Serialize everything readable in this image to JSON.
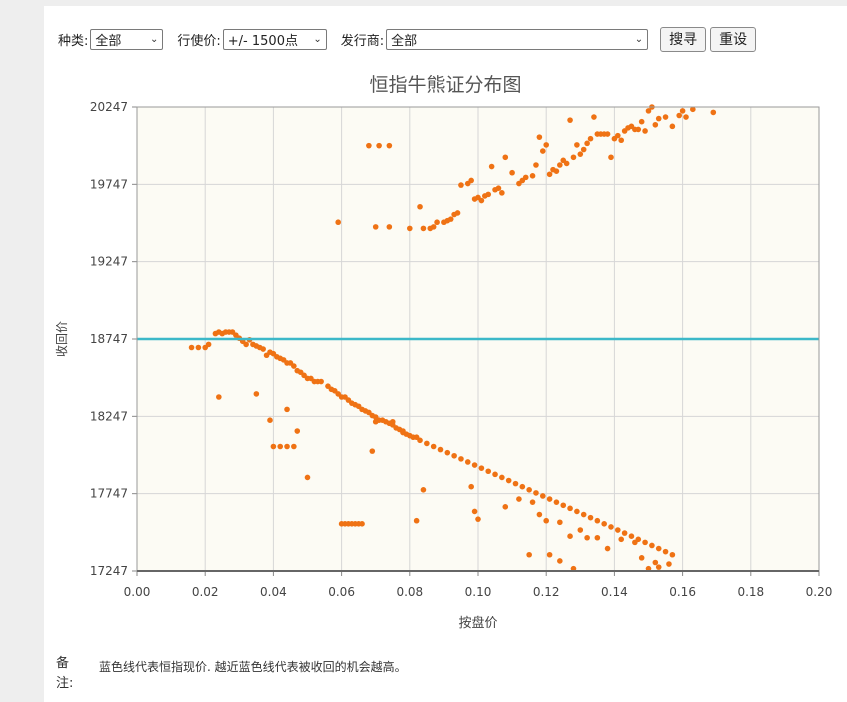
{
  "filters": {
    "type_label": "种类:",
    "type_value": "全部",
    "strike_label": "行使价:",
    "strike_value": "+/- 1500点",
    "issuer_label": "发行商:",
    "issuer_value": "全部",
    "search_button": "搜寻",
    "reset_button": "重设"
  },
  "note": {
    "label": "备注:",
    "text": "蓝色线代表恒指现价. 越近蓝色线代表被收回的机会越高。"
  },
  "colors": {
    "point": "#ef7214",
    "current_line": "#3cb8c8",
    "plot_bg": "#fcfbf4",
    "grid": "#d6d6d6"
  },
  "chart_data": {
    "type": "scatter",
    "title": "恒指牛熊证分布图",
    "xlabel": "按盘价",
    "ylabel": "收回价",
    "xlim": [
      0,
      0.2
    ],
    "ylim": [
      17247,
      20247
    ],
    "x_ticks": [
      "0.00",
      "0.02",
      "0.04",
      "0.06",
      "0.08",
      "0.10",
      "0.12",
      "0.14",
      "0.16",
      "0.18",
      "0.20"
    ],
    "y_ticks": [
      "17247",
      "17747",
      "18247",
      "18747",
      "19247",
      "19747",
      "20247"
    ],
    "grid": true,
    "current_index_level": 18747,
    "series": [
      {
        "values": [
          [
            0.059,
            19502
          ],
          [
            0.068,
            19997
          ],
          [
            0.071,
            19997
          ],
          [
            0.074,
            19997
          ],
          [
            0.07,
            19472
          ],
          [
            0.074,
            19472
          ],
          [
            0.08,
            19462
          ],
          [
            0.083,
            19602
          ],
          [
            0.084,
            19462
          ],
          [
            0.086,
            19462
          ],
          [
            0.087,
            19472
          ],
          [
            0.088,
            19502
          ],
          [
            0.09,
            19502
          ],
          [
            0.091,
            19512
          ],
          [
            0.092,
            19522
          ],
          [
            0.093,
            19552
          ],
          [
            0.094,
            19562
          ],
          [
            0.095,
            19742
          ],
          [
            0.097,
            19752
          ],
          [
            0.098,
            19772
          ],
          [
            0.099,
            19652
          ],
          [
            0.1,
            19662
          ],
          [
            0.101,
            19642
          ],
          [
            0.102,
            19672
          ],
          [
            0.103,
            19682
          ],
          [
            0.104,
            19862
          ],
          [
            0.105,
            19712
          ],
          [
            0.106,
            19722
          ],
          [
            0.107,
            19692
          ],
          [
            0.108,
            19922
          ],
          [
            0.11,
            19822
          ],
          [
            0.112,
            19752
          ],
          [
            0.113,
            19772
          ],
          [
            0.114,
            19792
          ],
          [
            0.116,
            19802
          ],
          [
            0.117,
            19872
          ],
          [
            0.118,
            20052
          ],
          [
            0.119,
            19962
          ],
          [
            0.12,
            20002
          ],
          [
            0.121,
            19812
          ],
          [
            0.122,
            19842
          ],
          [
            0.123,
            19832
          ],
          [
            0.124,
            19872
          ],
          [
            0.125,
            19902
          ],
          [
            0.126,
            19882
          ],
          [
            0.127,
            20162
          ],
          [
            0.128,
            19922
          ],
          [
            0.129,
            20002
          ],
          [
            0.13,
            19942
          ],
          [
            0.131,
            19972
          ],
          [
            0.132,
            20012
          ],
          [
            0.133,
            20042
          ],
          [
            0.134,
            20182
          ],
          [
            0.135,
            20072
          ],
          [
            0.136,
            20072
          ],
          [
            0.137,
            20072
          ],
          [
            0.138,
            20072
          ],
          [
            0.139,
            19922
          ],
          [
            0.14,
            20042
          ],
          [
            0.141,
            20062
          ],
          [
            0.142,
            20032
          ],
          [
            0.143,
            20092
          ],
          [
            0.144,
            20112
          ],
          [
            0.145,
            20122
          ],
          [
            0.146,
            20102
          ],
          [
            0.147,
            20102
          ],
          [
            0.148,
            20152
          ],
          [
            0.149,
            20092
          ],
          [
            0.15,
            20222
          ],
          [
            0.151,
            20247
          ],
          [
            0.152,
            20132
          ],
          [
            0.153,
            20172
          ],
          [
            0.155,
            20182
          ],
          [
            0.157,
            20122
          ],
          [
            0.159,
            20192
          ],
          [
            0.16,
            20222
          ],
          [
            0.161,
            20182
          ],
          [
            0.163,
            20232
          ],
          [
            0.169,
            20212
          ],
          [
            0.016,
            18692
          ],
          [
            0.018,
            18692
          ],
          [
            0.02,
            18692
          ],
          [
            0.021,
            18712
          ],
          [
            0.023,
            18782
          ],
          [
            0.024,
            18792
          ],
          [
            0.025,
            18782
          ],
          [
            0.026,
            18792
          ],
          [
            0.027,
            18792
          ],
          [
            0.028,
            18792
          ],
          [
            0.029,
            18772
          ],
          [
            0.03,
            18752
          ],
          [
            0.031,
            18732
          ],
          [
            0.032,
            18712
          ],
          [
            0.033,
            18742
          ],
          [
            0.034,
            18712
          ],
          [
            0.035,
            18702
          ],
          [
            0.036,
            18692
          ],
          [
            0.037,
            18682
          ],
          [
            0.038,
            18642
          ],
          [
            0.039,
            18662
          ],
          [
            0.04,
            18652
          ],
          [
            0.041,
            18632
          ],
          [
            0.042,
            18622
          ],
          [
            0.043,
            18612
          ],
          [
            0.044,
            18592
          ],
          [
            0.045,
            18592
          ],
          [
            0.046,
            18572
          ],
          [
            0.047,
            18542
          ],
          [
            0.048,
            18532
          ],
          [
            0.049,
            18512
          ],
          [
            0.05,
            18492
          ],
          [
            0.051,
            18492
          ],
          [
            0.052,
            18472
          ],
          [
            0.053,
            18472
          ],
          [
            0.054,
            18472
          ],
          [
            0.056,
            18442
          ],
          [
            0.057,
            18422
          ],
          [
            0.058,
            18412
          ],
          [
            0.059,
            18392
          ],
          [
            0.06,
            18372
          ],
          [
            0.061,
            18372
          ],
          [
            0.062,
            18352
          ],
          [
            0.063,
            18332
          ],
          [
            0.064,
            18322
          ],
          [
            0.065,
            18312
          ],
          [
            0.066,
            18292
          ],
          [
            0.067,
            18282
          ],
          [
            0.068,
            18272
          ],
          [
            0.069,
            18252
          ],
          [
            0.07,
            18242
          ],
          [
            0.071,
            18222
          ],
          [
            0.072,
            18222
          ],
          [
            0.073,
            18212
          ],
          [
            0.074,
            18202
          ],
          [
            0.075,
            18192
          ],
          [
            0.076,
            18172
          ],
          [
            0.077,
            18162
          ],
          [
            0.078,
            18152
          ],
          [
            0.079,
            18132
          ],
          [
            0.08,
            18122
          ],
          [
            0.081,
            18112
          ],
          [
            0.082,
            18112
          ],
          [
            0.083,
            18092
          ],
          [
            0.085,
            18072
          ],
          [
            0.087,
            18052
          ],
          [
            0.089,
            18032
          ],
          [
            0.091,
            18012
          ],
          [
            0.093,
            17992
          ],
          [
            0.095,
            17972
          ],
          [
            0.097,
            17952
          ],
          [
            0.099,
            17932
          ],
          [
            0.101,
            17912
          ],
          [
            0.103,
            17892
          ],
          [
            0.105,
            17872
          ],
          [
            0.107,
            17852
          ],
          [
            0.109,
            17832
          ],
          [
            0.111,
            17812
          ],
          [
            0.113,
            17792
          ],
          [
            0.115,
            17772
          ],
          [
            0.117,
            17752
          ],
          [
            0.119,
            17732
          ],
          [
            0.121,
            17712
          ],
          [
            0.123,
            17692
          ],
          [
            0.125,
            17672
          ],
          [
            0.127,
            17652
          ],
          [
            0.129,
            17632
          ],
          [
            0.131,
            17612
          ],
          [
            0.133,
            17592
          ],
          [
            0.135,
            17572
          ],
          [
            0.137,
            17552
          ],
          [
            0.139,
            17532
          ],
          [
            0.141,
            17512
          ],
          [
            0.143,
            17492
          ],
          [
            0.145,
            17472
          ],
          [
            0.147,
            17452
          ],
          [
            0.149,
            17432
          ],
          [
            0.151,
            17412
          ],
          [
            0.153,
            17392
          ],
          [
            0.155,
            17372
          ],
          [
            0.157,
            17352
          ],
          [
            0.024,
            18372
          ],
          [
            0.035,
            18392
          ],
          [
            0.044,
            18292
          ],
          [
            0.047,
            18152
          ],
          [
            0.039,
            18222
          ],
          [
            0.04,
            18052
          ],
          [
            0.042,
            18052
          ],
          [
            0.044,
            18052
          ],
          [
            0.046,
            18052
          ],
          [
            0.05,
            17852
          ],
          [
            0.06,
            17552
          ],
          [
            0.061,
            17552
          ],
          [
            0.062,
            17552
          ],
          [
            0.063,
            17552
          ],
          [
            0.064,
            17552
          ],
          [
            0.065,
            17552
          ],
          [
            0.066,
            17552
          ],
          [
            0.07,
            18212
          ],
          [
            0.069,
            18022
          ],
          [
            0.075,
            18212
          ],
          [
            0.078,
            18142
          ],
          [
            0.082,
            17572
          ],
          [
            0.084,
            17772
          ],
          [
            0.098,
            17792
          ],
          [
            0.099,
            17632
          ],
          [
            0.1,
            17582
          ],
          [
            0.108,
            17662
          ],
          [
            0.112,
            17712
          ],
          [
            0.116,
            17692
          ],
          [
            0.118,
            17612
          ],
          [
            0.12,
            17572
          ],
          [
            0.124,
            17562
          ],
          [
            0.127,
            17472
          ],
          [
            0.128,
            17262
          ],
          [
            0.13,
            17512
          ],
          [
            0.132,
            17462
          ],
          [
            0.135,
            17462
          ],
          [
            0.138,
            17392
          ],
          [
            0.142,
            17452
          ],
          [
            0.146,
            17432
          ],
          [
            0.148,
            17332
          ],
          [
            0.15,
            17262
          ],
          [
            0.152,
            17302
          ],
          [
            0.115,
            17352
          ],
          [
            0.121,
            17352
          ],
          [
            0.124,
            17312
          ],
          [
            0.153,
            17272
          ],
          [
            0.156,
            17292
          ]
        ]
      }
    ]
  }
}
